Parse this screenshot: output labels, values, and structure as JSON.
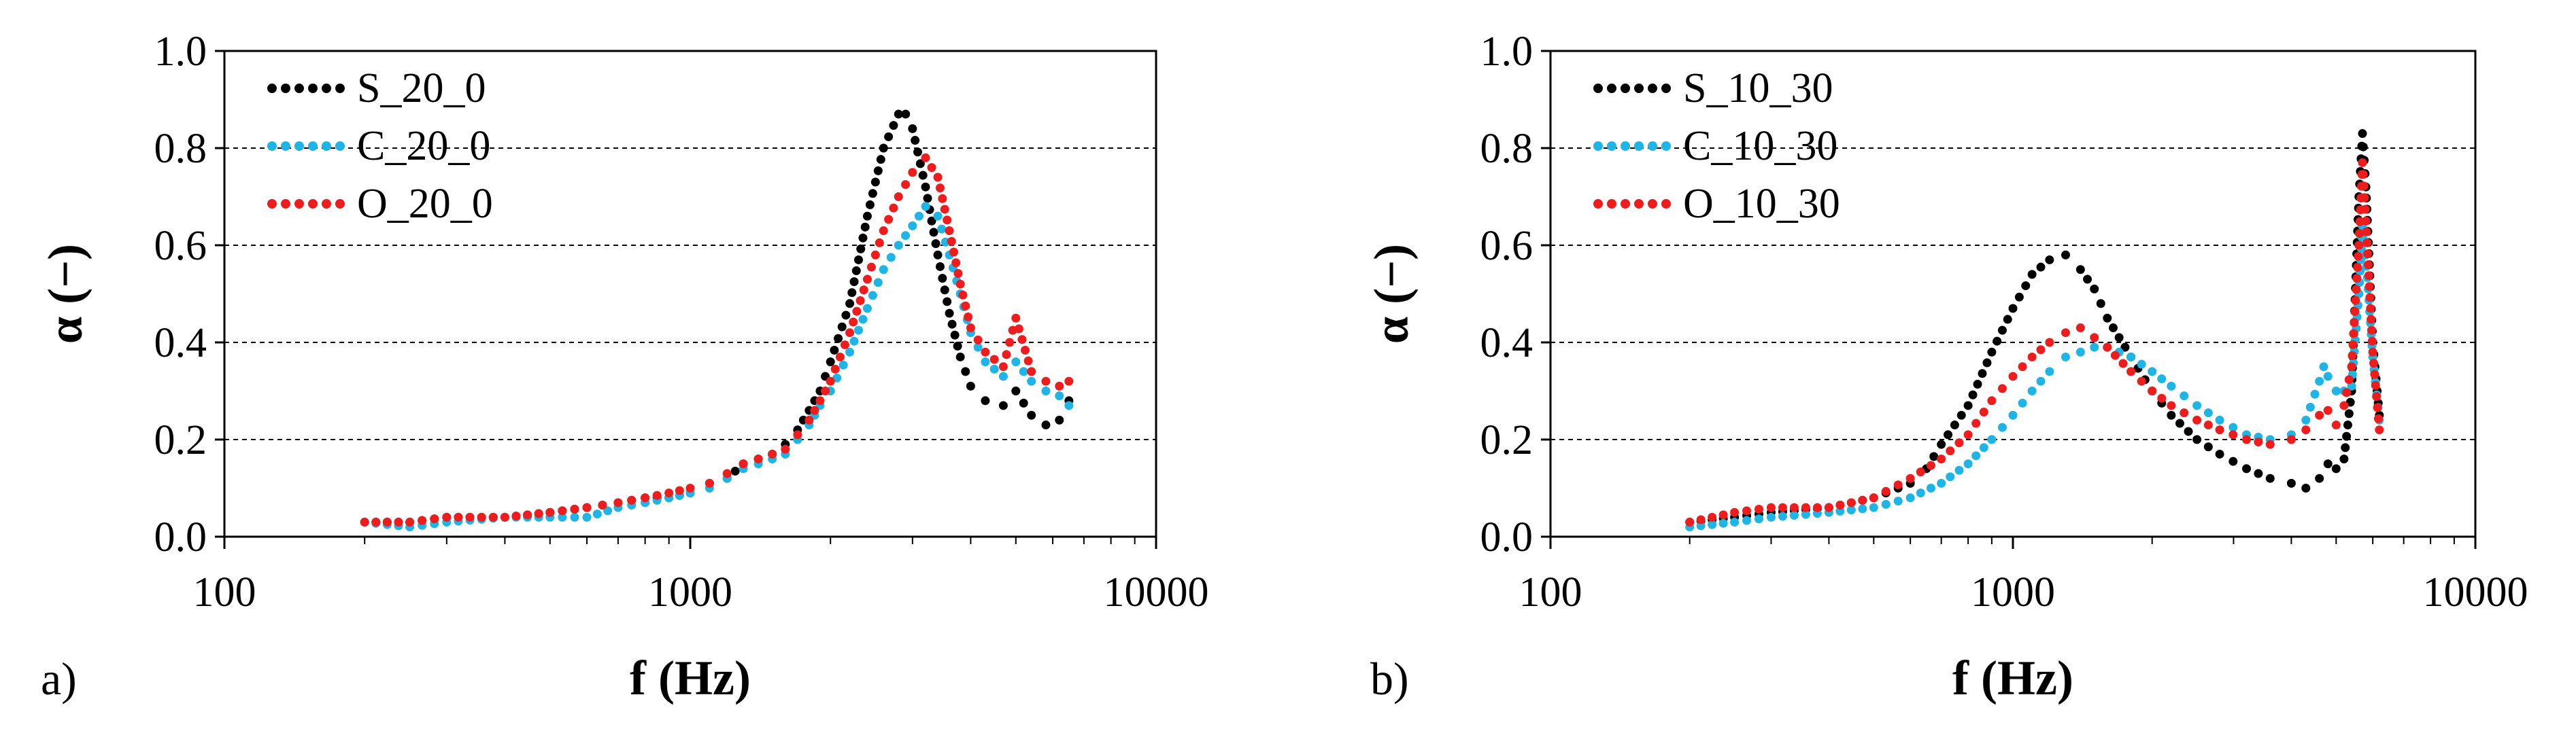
{
  "chart_data": [
    {
      "type": "scatter",
      "panel_label": "a)",
      "xlabel": "f (Hz)",
      "ylabel": "α (−)",
      "xscale": "log",
      "xlim": [
        100,
        10000
      ],
      "ylim": [
        0,
        1.0
      ],
      "xticks": [
        "100",
        "1000",
        "10000"
      ],
      "yticks": [
        "0.0",
        "0.2",
        "0.4",
        "0.6",
        "0.8",
        "1.0"
      ],
      "grid": "horizontal dashed",
      "legend_position": "top-left",
      "series": [
        {
          "name": "S_20_0",
          "color": "#000000",
          "points": [
            [
              200,
              0.03
            ],
            [
              250,
              0.03
            ],
            [
              300,
              0.04
            ],
            [
              400,
              0.04
            ],
            [
              500,
              0.05
            ],
            [
              600,
              0.06
            ],
            [
              700,
              0.07
            ],
            [
              800,
              0.08
            ],
            [
              900,
              0.08
            ],
            [
              1000,
              0.09
            ],
            [
              1100,
              0.11
            ],
            [
              1200,
              0.12
            ],
            [
              1300,
              0.15
            ],
            [
              1400,
              0.16
            ],
            [
              1500,
              0.17
            ],
            [
              1600,
              0.19
            ],
            [
              1700,
              0.22
            ],
            [
              1800,
              0.26
            ],
            [
              1900,
              0.3
            ],
            [
              2000,
              0.36
            ],
            [
              2200,
              0.48
            ],
            [
              2400,
              0.66
            ],
            [
              2600,
              0.8
            ],
            [
              2800,
              0.87
            ],
            [
              2900,
              0.87
            ],
            [
              3000,
              0.84
            ],
            [
              3200,
              0.72
            ],
            [
              3400,
              0.58
            ],
            [
              3600,
              0.46
            ],
            [
              3800,
              0.37
            ],
            [
              4000,
              0.31
            ],
            [
              4300,
              0.28
            ],
            [
              4700,
              0.27
            ],
            [
              5000,
              0.3
            ],
            [
              5400,
              0.25
            ],
            [
              5800,
              0.23
            ],
            [
              6200,
              0.24
            ],
            [
              6500,
              0.28
            ]
          ]
        },
        {
          "name": "C_20_0",
          "color": "#1fb4e6",
          "points": [
            [
              200,
              0.03
            ],
            [
              250,
              0.02
            ],
            [
              300,
              0.03
            ],
            [
              400,
              0.04
            ],
            [
              500,
              0.04
            ],
            [
              600,
              0.04
            ],
            [
              700,
              0.06
            ],
            [
              800,
              0.07
            ],
            [
              900,
              0.08
            ],
            [
              1000,
              0.09
            ],
            [
              1100,
              0.1
            ],
            [
              1200,
              0.12
            ],
            [
              1300,
              0.14
            ],
            [
              1400,
              0.15
            ],
            [
              1500,
              0.16
            ],
            [
              1600,
              0.17
            ],
            [
              1700,
              0.2
            ],
            [
              1800,
              0.23
            ],
            [
              1900,
              0.27
            ],
            [
              2000,
              0.3
            ],
            [
              2200,
              0.38
            ],
            [
              2400,
              0.47
            ],
            [
              2600,
              0.55
            ],
            [
              2800,
              0.6
            ],
            [
              3000,
              0.64
            ],
            [
              3200,
              0.68
            ],
            [
              3400,
              0.66
            ],
            [
              3600,
              0.58
            ],
            [
              3800,
              0.5
            ],
            [
              4000,
              0.42
            ],
            [
              4300,
              0.36
            ],
            [
              4700,
              0.33
            ],
            [
              5000,
              0.36
            ],
            [
              5400,
              0.32
            ],
            [
              5800,
              0.3
            ],
            [
              6200,
              0.29
            ],
            [
              6500,
              0.27
            ]
          ]
        },
        {
          "name": "O_20_0",
          "color": "#ee1c1c",
          "points": [
            [
              200,
              0.03
            ],
            [
              250,
              0.03
            ],
            [
              300,
              0.04
            ],
            [
              400,
              0.04
            ],
            [
              500,
              0.05
            ],
            [
              600,
              0.06
            ],
            [
              700,
              0.07
            ],
            [
              800,
              0.08
            ],
            [
              900,
              0.09
            ],
            [
              1000,
              0.1
            ],
            [
              1100,
              0.11
            ],
            [
              1200,
              0.13
            ],
            [
              1300,
              0.15
            ],
            [
              1400,
              0.16
            ],
            [
              1500,
              0.17
            ],
            [
              1600,
              0.18
            ],
            [
              1700,
              0.21
            ],
            [
              1800,
              0.24
            ],
            [
              1900,
              0.28
            ],
            [
              2000,
              0.32
            ],
            [
              2200,
              0.42
            ],
            [
              2400,
              0.53
            ],
            [
              2600,
              0.63
            ],
            [
              2800,
              0.7
            ],
            [
              3000,
              0.75
            ],
            [
              3200,
              0.78
            ],
            [
              3400,
              0.74
            ],
            [
              3600,
              0.63
            ],
            [
              3800,
              0.52
            ],
            [
              4000,
              0.43
            ],
            [
              4300,
              0.38
            ],
            [
              4700,
              0.35
            ],
            [
              5000,
              0.45
            ],
            [
              5400,
              0.34
            ],
            [
              5800,
              0.32
            ],
            [
              6200,
              0.31
            ],
            [
              6500,
              0.32
            ]
          ]
        }
      ]
    },
    {
      "type": "scatter",
      "panel_label": "b)",
      "xlabel": "f (Hz)",
      "ylabel": "α (−)",
      "xscale": "log",
      "xlim": [
        100,
        10000
      ],
      "ylim": [
        0,
        1.0
      ],
      "xticks": [
        "100",
        "1000",
        "10000"
      ],
      "yticks": [
        "0.0",
        "0.2",
        "0.4",
        "0.6",
        "0.8",
        "1.0"
      ],
      "grid": "horizontal dashed",
      "legend_position": "top-left",
      "series": [
        {
          "name": "S_10_30",
          "color": "#000000",
          "points": [
            [
              200,
              0.03
            ],
            [
              250,
              0.04
            ],
            [
              300,
              0.05
            ],
            [
              400,
              0.06
            ],
            [
              500,
              0.08
            ],
            [
              600,
              0.11
            ],
            [
              650,
              0.14
            ],
            [
              700,
              0.19
            ],
            [
              800,
              0.27
            ],
            [
              900,
              0.38
            ],
            [
              1000,
              0.47
            ],
            [
              1100,
              0.54
            ],
            [
              1200,
              0.57
            ],
            [
              1300,
              0.58
            ],
            [
              1400,
              0.55
            ],
            [
              1500,
              0.51
            ],
            [
              1600,
              0.45
            ],
            [
              1800,
              0.37
            ],
            [
              2000,
              0.3
            ],
            [
              2200,
              0.25
            ],
            [
              2500,
              0.2
            ],
            [
              2800,
              0.17
            ],
            [
              3200,
              0.14
            ],
            [
              3600,
              0.12
            ],
            [
              4000,
              0.11
            ],
            [
              4300,
              0.1
            ],
            [
              4600,
              0.12
            ],
            [
              4800,
              0.15
            ],
            [
              5000,
              0.14
            ],
            [
              5200,
              0.16
            ],
            [
              5400,
              0.3
            ],
            [
              5600,
              0.7
            ],
            [
              5700,
              0.83
            ],
            [
              5800,
              0.72
            ],
            [
              6000,
              0.4
            ],
            [
              6200,
              0.25
            ]
          ]
        },
        {
          "name": "C_10_30",
          "color": "#1fb4e6",
          "points": [
            [
              200,
              0.02
            ],
            [
              250,
              0.03
            ],
            [
              300,
              0.04
            ],
            [
              400,
              0.05
            ],
            [
              500,
              0.06
            ],
            [
              600,
              0.08
            ],
            [
              700,
              0.11
            ],
            [
              800,
              0.15
            ],
            [
              900,
              0.2
            ],
            [
              1000,
              0.25
            ],
            [
              1100,
              0.3
            ],
            [
              1200,
              0.34
            ],
            [
              1300,
              0.37
            ],
            [
              1400,
              0.38
            ],
            [
              1500,
              0.39
            ],
            [
              1600,
              0.39
            ],
            [
              1800,
              0.37
            ],
            [
              2000,
              0.34
            ],
            [
              2200,
              0.31
            ],
            [
              2500,
              0.27
            ],
            [
              2800,
              0.24
            ],
            [
              3200,
              0.21
            ],
            [
              3600,
              0.2
            ],
            [
              4000,
              0.21
            ],
            [
              4300,
              0.24
            ],
            [
              4600,
              0.32
            ],
            [
              4700,
              0.35
            ],
            [
              4800,
              0.33
            ],
            [
              5000,
              0.3
            ],
            [
              5200,
              0.3
            ],
            [
              5400,
              0.31
            ],
            [
              5600,
              0.5
            ],
            [
              5700,
              0.64
            ],
            [
              5800,
              0.58
            ],
            [
              6000,
              0.37
            ],
            [
              6200,
              0.24
            ]
          ]
        },
        {
          "name": "O_10_30",
          "color": "#ee1c1c",
          "points": [
            [
              200,
              0.03
            ],
            [
              250,
              0.05
            ],
            [
              300,
              0.06
            ],
            [
              400,
              0.06
            ],
            [
              500,
              0.08
            ],
            [
              600,
              0.12
            ],
            [
              700,
              0.16
            ],
            [
              800,
              0.21
            ],
            [
              900,
              0.28
            ],
            [
              1000,
              0.33
            ],
            [
              1100,
              0.37
            ],
            [
              1200,
              0.4
            ],
            [
              1300,
              0.42
            ],
            [
              1400,
              0.43
            ],
            [
              1500,
              0.41
            ],
            [
              1600,
              0.39
            ],
            [
              1800,
              0.34
            ],
            [
              2000,
              0.3
            ],
            [
              2200,
              0.27
            ],
            [
              2500,
              0.24
            ],
            [
              2800,
              0.22
            ],
            [
              3200,
              0.2
            ],
            [
              3600,
              0.19
            ],
            [
              4000,
              0.2
            ],
            [
              4300,
              0.22
            ],
            [
              4600,
              0.25
            ],
            [
              4800,
              0.26
            ],
            [
              5000,
              0.23
            ],
            [
              5200,
              0.27
            ],
            [
              5400,
              0.35
            ],
            [
              5600,
              0.6
            ],
            [
              5700,
              0.77
            ],
            [
              5800,
              0.65
            ],
            [
              6000,
              0.38
            ],
            [
              6200,
              0.22
            ]
          ]
        }
      ]
    }
  ]
}
